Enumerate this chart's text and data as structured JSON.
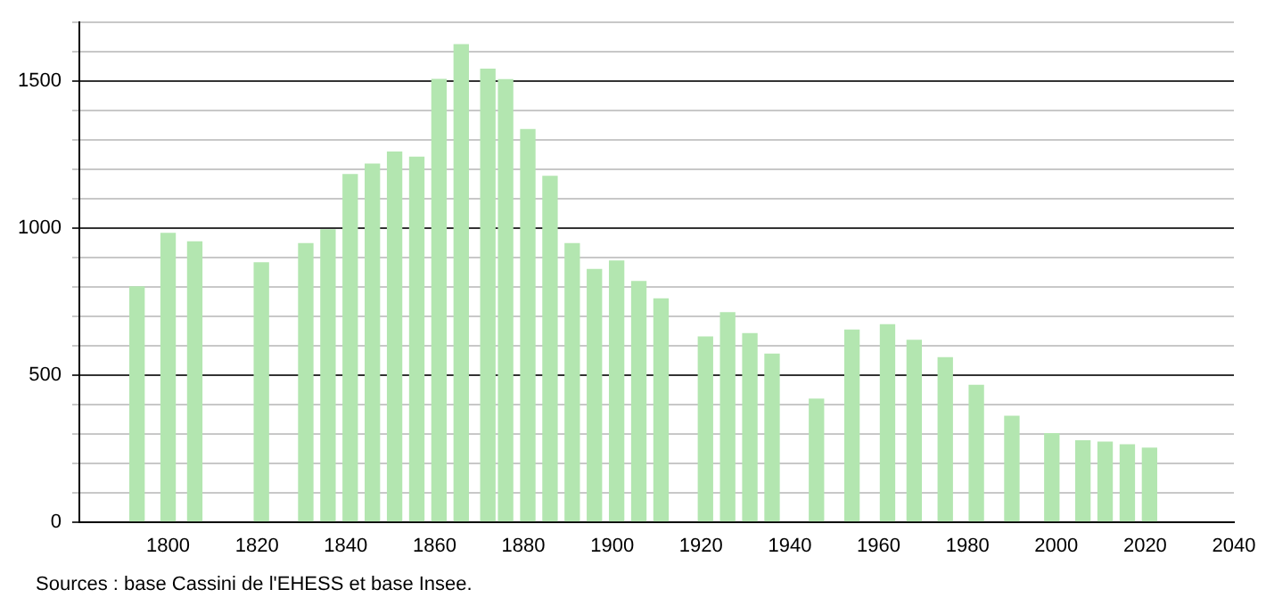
{
  "chart_data": {
    "type": "bar",
    "x": [
      1793,
      1800,
      1806,
      1821,
      1831,
      1836,
      1841,
      1846,
      1851,
      1856,
      1861,
      1866,
      1872,
      1876,
      1881,
      1886,
      1891,
      1896,
      1901,
      1906,
      1911,
      1921,
      1926,
      1931,
      1936,
      1946,
      1954,
      1962,
      1968,
      1975,
      1982,
      1990,
      1999,
      2006,
      2011,
      2016,
      2021
    ],
    "values": [
      800,
      982,
      953,
      882,
      947,
      994,
      1182,
      1218,
      1259,
      1241,
      1506,
      1624,
      1541,
      1505,
      1335,
      1176,
      947,
      859,
      888,
      818,
      759,
      629,
      712,
      641,
      571,
      418,
      653,
      671,
      618,
      559,
      465,
      359,
      300,
      276,
      271,
      262,
      251
    ],
    "color": "#b3e6b0",
    "xlim": [
      1780,
      2040
    ],
    "xticks": [
      1800,
      1820,
      1840,
      1860,
      1880,
      1900,
      1920,
      1940,
      1960,
      1980,
      2000,
      2020,
      2040
    ],
    "ylim": [
      0,
      1700
    ],
    "yticks": [
      0,
      {
        "value": 100,
        "label": null
      },
      {
        "value": 200,
        "label": null
      },
      {
        "value": 300,
        "label": null
      },
      {
        "value": 400,
        "label": null
      },
      500,
      {
        "value": 600,
        "label": null
      },
      {
        "value": 700,
        "label": null
      },
      {
        "value": 800,
        "label": null
      },
      {
        "value": 900,
        "label": null
      },
      1000,
      {
        "value": 1100,
        "label": null
      },
      {
        "value": 1200,
        "label": null
      },
      {
        "value": 1300,
        "label": null
      },
      {
        "value": 1400,
        "label": null
      },
      1500,
      {
        "value": 1600,
        "label": null
      },
      {
        "value": 1700,
        "label": null
      }
    ],
    "grid": "y",
    "annotations": [
      "Sources : base Cassini de l'EHESS et base Insee."
    ]
  }
}
